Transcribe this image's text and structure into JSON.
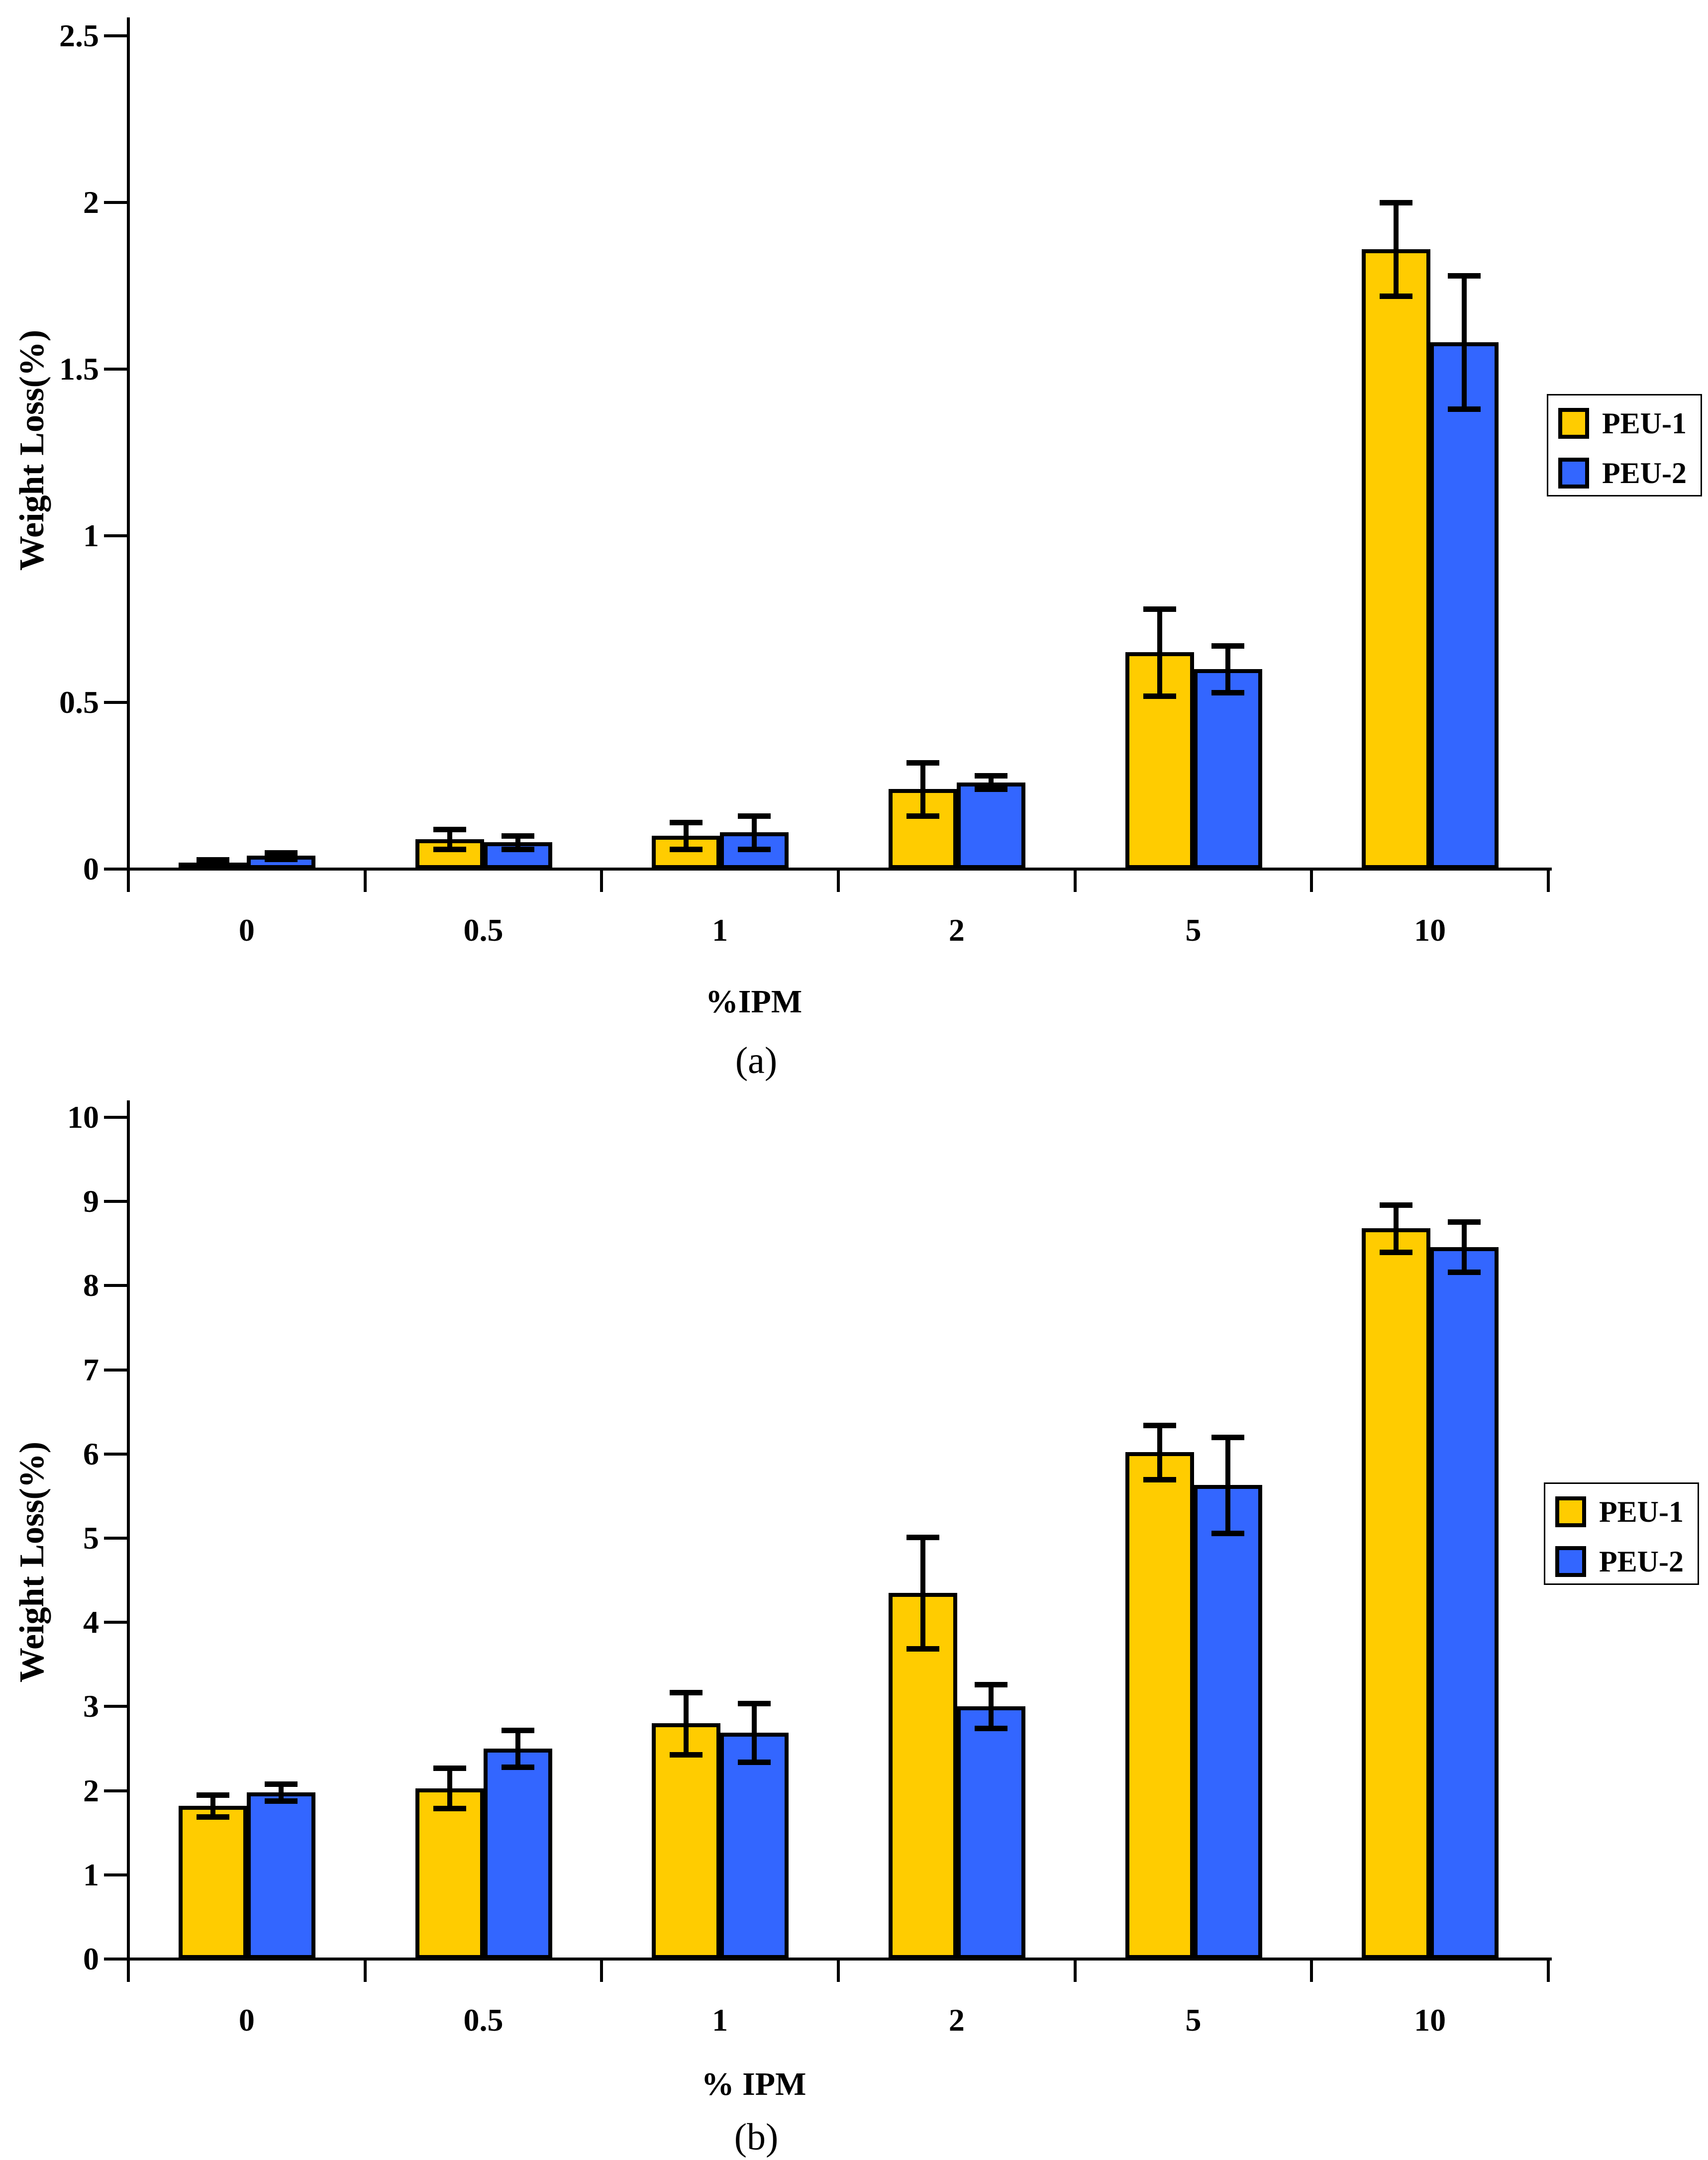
{
  "figure": {
    "background": "#ffffff",
    "axis_color": "#000000"
  },
  "chart_data": [
    {
      "type": "bar",
      "panel_caption": "(a)",
      "title": "",
      "xlabel": "%IPM",
      "ylabel": "Weight Loss(%)",
      "ylim": [
        0,
        2.5
      ],
      "ytick_step": 0.5,
      "ytick_labels": [
        "0",
        "0.5",
        "1",
        "1.5",
        "2",
        "2.5"
      ],
      "categories": [
        "0",
        "0.5",
        "1",
        "2",
        "5",
        "10"
      ],
      "grid": "off",
      "legend_position": "right",
      "series": [
        {
          "name": "PEU-1",
          "color": "#FFCC00",
          "values": [
            0.02,
            0.09,
            0.1,
            0.24,
            0.65,
            1.86
          ],
          "errors": [
            0.008,
            0.03,
            0.04,
            0.08,
            0.13,
            0.14
          ]
        },
        {
          "name": "PEU-2",
          "color": "#3366FF",
          "values": [
            0.04,
            0.08,
            0.11,
            0.26,
            0.6,
            1.58
          ],
          "errors": [
            0.01,
            0.02,
            0.05,
            0.02,
            0.07,
            0.2
          ]
        }
      ]
    },
    {
      "type": "bar",
      "panel_caption": "(b)",
      "title": "",
      "xlabel": "% IPM",
      "ylabel": "Weight Loss(%)",
      "ylim": [
        0,
        10
      ],
      "ytick_step": 1,
      "ytick_labels": [
        "0",
        "1",
        "2",
        "3",
        "4",
        "5",
        "6",
        "7",
        "8",
        "9",
        "10"
      ],
      "categories": [
        "0",
        "0.5",
        "1",
        "2",
        "5",
        "10"
      ],
      "grid": "off",
      "legend_position": "right",
      "series": [
        {
          "name": "PEU-1",
          "color": "#FFCC00",
          "values": [
            1.82,
            2.03,
            2.8,
            4.35,
            6.02,
            8.68
          ],
          "errors": [
            0.13,
            0.24,
            0.37,
            0.66,
            0.32,
            0.28
          ]
        },
        {
          "name": "PEU-2",
          "color": "#3366FF",
          "values": [
            1.98,
            2.5,
            2.69,
            3.0,
            5.63,
            8.46
          ],
          "errors": [
            0.1,
            0.22,
            0.35,
            0.26,
            0.57,
            0.3
          ]
        }
      ]
    }
  ]
}
